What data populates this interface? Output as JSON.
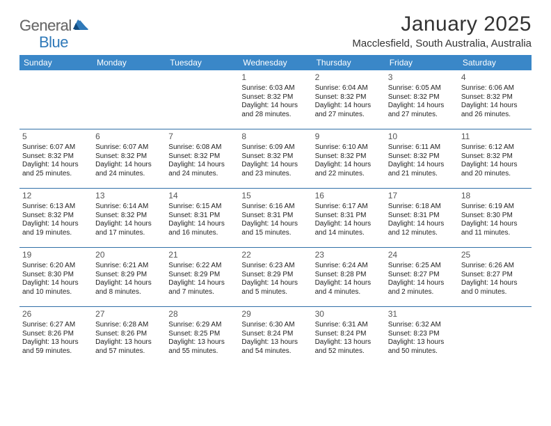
{
  "brand": {
    "general": "General",
    "blue": "Blue"
  },
  "title": "January 2025",
  "subtitle": "Macclesfield, South Australia, Australia",
  "colors": {
    "header_bg": "#3a87c8",
    "header_text": "#ffffff",
    "rule": "#2f6fa7",
    "logo_gray": "#6b6b6b",
    "logo_blue": "#2f79b9"
  },
  "days_of_week": [
    "Sunday",
    "Monday",
    "Tuesday",
    "Wednesday",
    "Thursday",
    "Friday",
    "Saturday"
  ],
  "weeks": [
    [
      null,
      null,
      null,
      {
        "n": "1",
        "sr": "6:03 AM",
        "ss": "8:32 PM",
        "dl": "14 hours and 28 minutes."
      },
      {
        "n": "2",
        "sr": "6:04 AM",
        "ss": "8:32 PM",
        "dl": "14 hours and 27 minutes."
      },
      {
        "n": "3",
        "sr": "6:05 AM",
        "ss": "8:32 PM",
        "dl": "14 hours and 27 minutes."
      },
      {
        "n": "4",
        "sr": "6:06 AM",
        "ss": "8:32 PM",
        "dl": "14 hours and 26 minutes."
      }
    ],
    [
      {
        "n": "5",
        "sr": "6:07 AM",
        "ss": "8:32 PM",
        "dl": "14 hours and 25 minutes."
      },
      {
        "n": "6",
        "sr": "6:07 AM",
        "ss": "8:32 PM",
        "dl": "14 hours and 24 minutes."
      },
      {
        "n": "7",
        "sr": "6:08 AM",
        "ss": "8:32 PM",
        "dl": "14 hours and 24 minutes."
      },
      {
        "n": "8",
        "sr": "6:09 AM",
        "ss": "8:32 PM",
        "dl": "14 hours and 23 minutes."
      },
      {
        "n": "9",
        "sr": "6:10 AM",
        "ss": "8:32 PM",
        "dl": "14 hours and 22 minutes."
      },
      {
        "n": "10",
        "sr": "6:11 AM",
        "ss": "8:32 PM",
        "dl": "14 hours and 21 minutes."
      },
      {
        "n": "11",
        "sr": "6:12 AM",
        "ss": "8:32 PM",
        "dl": "14 hours and 20 minutes."
      }
    ],
    [
      {
        "n": "12",
        "sr": "6:13 AM",
        "ss": "8:32 PM",
        "dl": "14 hours and 19 minutes."
      },
      {
        "n": "13",
        "sr": "6:14 AM",
        "ss": "8:32 PM",
        "dl": "14 hours and 17 minutes."
      },
      {
        "n": "14",
        "sr": "6:15 AM",
        "ss": "8:31 PM",
        "dl": "14 hours and 16 minutes."
      },
      {
        "n": "15",
        "sr": "6:16 AM",
        "ss": "8:31 PM",
        "dl": "14 hours and 15 minutes."
      },
      {
        "n": "16",
        "sr": "6:17 AM",
        "ss": "8:31 PM",
        "dl": "14 hours and 14 minutes."
      },
      {
        "n": "17",
        "sr": "6:18 AM",
        "ss": "8:31 PM",
        "dl": "14 hours and 12 minutes."
      },
      {
        "n": "18",
        "sr": "6:19 AM",
        "ss": "8:30 PM",
        "dl": "14 hours and 11 minutes."
      }
    ],
    [
      {
        "n": "19",
        "sr": "6:20 AM",
        "ss": "8:30 PM",
        "dl": "14 hours and 10 minutes."
      },
      {
        "n": "20",
        "sr": "6:21 AM",
        "ss": "8:29 PM",
        "dl": "14 hours and 8 minutes."
      },
      {
        "n": "21",
        "sr": "6:22 AM",
        "ss": "8:29 PM",
        "dl": "14 hours and 7 minutes."
      },
      {
        "n": "22",
        "sr": "6:23 AM",
        "ss": "8:29 PM",
        "dl": "14 hours and 5 minutes."
      },
      {
        "n": "23",
        "sr": "6:24 AM",
        "ss": "8:28 PM",
        "dl": "14 hours and 4 minutes."
      },
      {
        "n": "24",
        "sr": "6:25 AM",
        "ss": "8:27 PM",
        "dl": "14 hours and 2 minutes."
      },
      {
        "n": "25",
        "sr": "6:26 AM",
        "ss": "8:27 PM",
        "dl": "14 hours and 0 minutes."
      }
    ],
    [
      {
        "n": "26",
        "sr": "6:27 AM",
        "ss": "8:26 PM",
        "dl": "13 hours and 59 minutes."
      },
      {
        "n": "27",
        "sr": "6:28 AM",
        "ss": "8:26 PM",
        "dl": "13 hours and 57 minutes."
      },
      {
        "n": "28",
        "sr": "6:29 AM",
        "ss": "8:25 PM",
        "dl": "13 hours and 55 minutes."
      },
      {
        "n": "29",
        "sr": "6:30 AM",
        "ss": "8:24 PM",
        "dl": "13 hours and 54 minutes."
      },
      {
        "n": "30",
        "sr": "6:31 AM",
        "ss": "8:24 PM",
        "dl": "13 hours and 52 minutes."
      },
      {
        "n": "31",
        "sr": "6:32 AM",
        "ss": "8:23 PM",
        "dl": "13 hours and 50 minutes."
      },
      null
    ]
  ],
  "labels": {
    "sunrise": "Sunrise:",
    "sunset": "Sunset:",
    "daylight": "Daylight:"
  }
}
